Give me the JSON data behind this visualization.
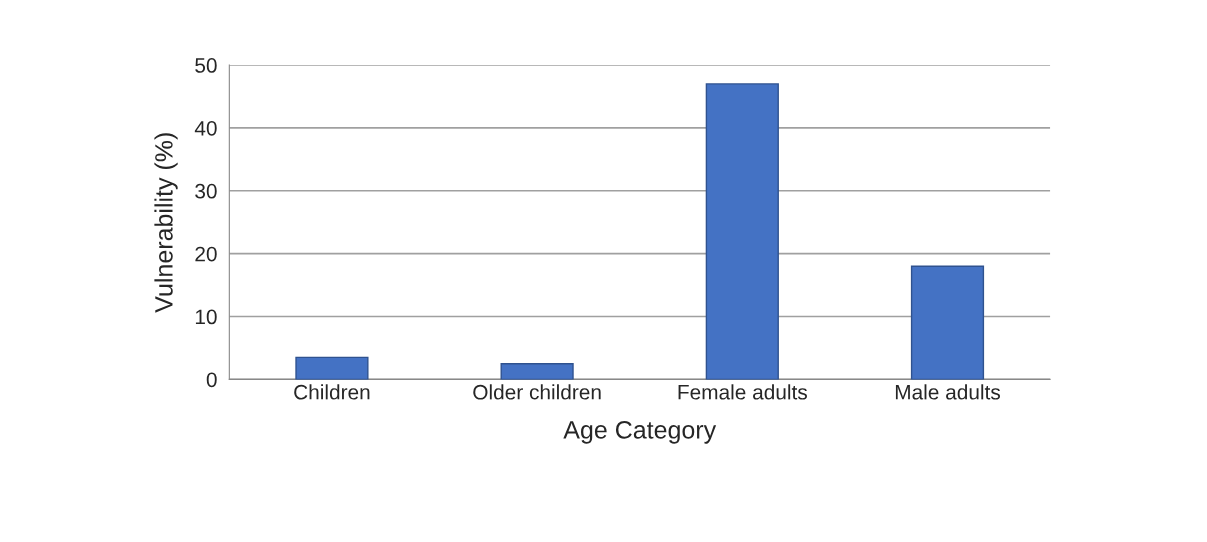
{
  "chart_data": {
    "type": "bar",
    "xlabel": "Age Category",
    "ylabel": "Vulnerability (%)",
    "categories": [
      "Children",
      "Older children",
      "Female adults",
      "Male adults"
    ],
    "values": [
      3.5,
      2.5,
      47,
      18
    ],
    "color": "#4472c4",
    "ylim": [
      0,
      50
    ],
    "yticks": [
      0,
      10,
      20,
      30,
      40,
      50
    ],
    "grid": "y"
  }
}
